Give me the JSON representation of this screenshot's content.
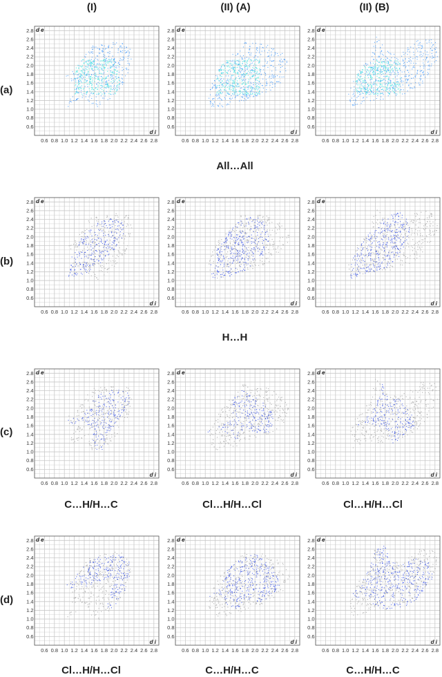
{
  "columns": [
    "(I)",
    "(II) (A)",
    "(II) (B)"
  ],
  "rows": [
    {
      "label": "(a)",
      "captions": [
        "All…All",
        "",
        ""
      ]
    },
    {
      "label": "(b)",
      "captions": [
        "H…H",
        "",
        ""
      ]
    },
    {
      "label": "(c)",
      "captions": [
        "C…H/H…C",
        "Cl…H/H…Cl",
        "Cl…H/H…Cl"
      ]
    },
    {
      "label": "(d)",
      "captions": [
        "Cl…H/H…Cl",
        "C…H/H…C",
        "C…H/H…C"
      ]
    }
  ],
  "chart_data": {
    "type": "scatter",
    "xlabel": "d i",
    "ylabel": "d e",
    "xlim": [
      0.4,
      2.9
    ],
    "ylim": [
      0.4,
      2.9
    ],
    "grid": true,
    "xticks": [
      "0.6",
      "0.8",
      "1.0",
      "1.2",
      "1.4",
      "1.6",
      "1.8",
      "2.0",
      "2.2",
      "2.4",
      "2.6",
      "2.8"
    ],
    "yticks": [
      "0.6",
      "0.8",
      "1.0",
      "1.2",
      "1.4",
      "1.6",
      "1.8",
      "2.0",
      "2.2",
      "2.4",
      "2.6",
      "2.8"
    ],
    "colors": {
      "full": "#2a8cff",
      "contact": "#1f3ee6",
      "background": "#b8b8b8",
      "grid": "#c8c8c8",
      "axis": "#555555"
    },
    "panels": [
      {
        "row": "(a)",
        "col": "(I)",
        "mode": "full",
        "shape": [
          [
            1.05,
            1.05
          ],
          [
            1.2,
            1.55
          ],
          [
            1.0,
            1.75
          ],
          [
            1.25,
            2.0
          ],
          [
            1.5,
            2.45
          ],
          [
            2.0,
            2.55
          ],
          [
            2.3,
            2.5
          ],
          [
            2.35,
            2.2
          ],
          [
            2.3,
            1.9
          ],
          [
            2.2,
            1.6
          ],
          [
            2.05,
            1.4
          ],
          [
            1.85,
            1.15
          ],
          [
            1.7,
            1.0
          ],
          [
            1.55,
            1.05
          ],
          [
            1.4,
            1.3
          ]
        ]
      },
      {
        "row": "(a)",
        "col": "(II) (A)",
        "mode": "full",
        "shape": [
          [
            1.1,
            1.05
          ],
          [
            1.05,
            1.3
          ],
          [
            1.1,
            1.6
          ],
          [
            1.3,
            2.0
          ],
          [
            1.55,
            2.3
          ],
          [
            1.75,
            2.55
          ],
          [
            2.2,
            2.5
          ],
          [
            2.55,
            2.3
          ],
          [
            2.7,
            2.0
          ],
          [
            2.6,
            1.7
          ],
          [
            2.35,
            1.45
          ],
          [
            2.0,
            1.3
          ],
          [
            1.65,
            1.15
          ],
          [
            1.3,
            1.05
          ]
        ]
      },
      {
        "row": "(a)",
        "col": "(II) (B)",
        "mode": "full",
        "shape": [
          [
            1.1,
            1.05
          ],
          [
            1.05,
            1.35
          ],
          [
            1.2,
            1.8
          ],
          [
            1.5,
            2.2
          ],
          [
            1.6,
            2.7
          ],
          [
            1.85,
            2.35
          ],
          [
            2.1,
            2.3
          ],
          [
            2.45,
            2.6
          ],
          [
            2.8,
            2.6
          ],
          [
            2.85,
            2.2
          ],
          [
            2.6,
            1.65
          ],
          [
            2.3,
            1.4
          ],
          [
            1.9,
            1.25
          ],
          [
            1.4,
            1.15
          ]
        ]
      },
      {
        "row": "(b)",
        "col": "(I)",
        "mode": "contact",
        "shape": [
          [
            1.05,
            1.08
          ],
          [
            1.1,
            1.4
          ],
          [
            1.2,
            1.75
          ],
          [
            1.4,
            2.1
          ],
          [
            1.7,
            2.35
          ],
          [
            2.0,
            2.45
          ],
          [
            2.2,
            2.35
          ],
          [
            2.2,
            2.0
          ],
          [
            2.0,
            1.7
          ],
          [
            1.75,
            1.4
          ],
          [
            1.5,
            1.2
          ],
          [
            1.25,
            1.1
          ]
        ]
      },
      {
        "row": "(b)",
        "col": "(II) (A)",
        "mode": "contact",
        "shape": [
          [
            1.1,
            1.05
          ],
          [
            1.1,
            1.4
          ],
          [
            1.25,
            1.75
          ],
          [
            1.45,
            2.1
          ],
          [
            1.75,
            2.45
          ],
          [
            2.0,
            2.55
          ],
          [
            2.2,
            2.3
          ],
          [
            2.3,
            1.95
          ],
          [
            2.2,
            1.6
          ],
          [
            1.95,
            1.3
          ],
          [
            1.6,
            1.15
          ],
          [
            1.3,
            1.05
          ]
        ]
      },
      {
        "row": "(b)",
        "col": "(II) (B)",
        "mode": "contact",
        "shape": [
          [
            1.1,
            1.05
          ],
          [
            1.1,
            1.4
          ],
          [
            1.25,
            1.8
          ],
          [
            1.5,
            2.15
          ],
          [
            1.8,
            2.5
          ],
          [
            2.1,
            2.6
          ],
          [
            2.3,
            2.3
          ],
          [
            2.25,
            1.9
          ],
          [
            2.1,
            1.55
          ],
          [
            1.8,
            1.3
          ],
          [
            1.45,
            1.15
          ]
        ]
      },
      {
        "row": "(c)",
        "col": "(I)",
        "mode": "contact",
        "shape": [
          [
            1.0,
            1.7
          ],
          [
            1.2,
            1.6
          ],
          [
            1.4,
            1.9
          ],
          [
            1.6,
            2.25
          ],
          [
            1.9,
            2.45
          ],
          [
            2.3,
            2.4
          ],
          [
            2.3,
            2.1
          ],
          [
            2.05,
            1.7
          ],
          [
            1.85,
            1.35
          ],
          [
            1.75,
            1.05
          ],
          [
            1.6,
            1.05
          ],
          [
            1.55,
            1.45
          ],
          [
            1.35,
            1.75
          ],
          [
            1.15,
            1.8
          ]
        ]
      },
      {
        "row": "(c)",
        "col": "(II) (A)",
        "mode": "contact",
        "shape": [
          [
            1.0,
            1.45
          ],
          [
            1.3,
            1.6
          ],
          [
            1.55,
            1.75
          ],
          [
            1.55,
            2.2
          ],
          [
            1.7,
            2.45
          ],
          [
            1.85,
            2.35
          ],
          [
            2.1,
            2.2
          ],
          [
            2.35,
            1.9
          ],
          [
            2.4,
            1.55
          ],
          [
            2.2,
            1.4
          ],
          [
            1.95,
            1.45
          ],
          [
            1.8,
            1.6
          ],
          [
            1.6,
            1.2
          ],
          [
            1.55,
            1.35
          ],
          [
            1.3,
            1.5
          ]
        ]
      },
      {
        "row": "(c)",
        "col": "(II) (B)",
        "mode": "contact",
        "shape": [
          [
            1.05,
            1.55
          ],
          [
            1.35,
            1.7
          ],
          [
            1.55,
            1.95
          ],
          [
            1.7,
            2.4
          ],
          [
            1.75,
            2.65
          ],
          [
            1.8,
            2.3
          ],
          [
            2.1,
            2.2
          ],
          [
            2.3,
            1.95
          ],
          [
            2.4,
            1.6
          ],
          [
            2.15,
            1.35
          ],
          [
            1.95,
            1.2
          ],
          [
            1.8,
            1.55
          ],
          [
            1.5,
            1.65
          ],
          [
            1.25,
            1.6
          ]
        ]
      },
      {
        "row": "(d)",
        "col": "(I)",
        "mode": "contact",
        "shape": [
          [
            1.0,
            1.75
          ],
          [
            1.2,
            1.95
          ],
          [
            1.4,
            2.3
          ],
          [
            1.7,
            2.45
          ],
          [
            2.1,
            2.5
          ],
          [
            2.35,
            2.3
          ],
          [
            2.3,
            1.95
          ],
          [
            2.2,
            1.6
          ],
          [
            2.05,
            1.3
          ],
          [
            1.9,
            1.15
          ],
          [
            1.85,
            1.4
          ],
          [
            1.95,
            1.75
          ],
          [
            2.0,
            2.05
          ],
          [
            1.75,
            1.85
          ],
          [
            1.4,
            1.75
          ],
          [
            1.2,
            1.7
          ]
        ]
      },
      {
        "row": "(d)",
        "col": "(II) (A)",
        "mode": "contact",
        "shape": [
          [
            1.05,
            1.5
          ],
          [
            1.3,
            1.75
          ],
          [
            1.4,
            2.1
          ],
          [
            1.65,
            2.35
          ],
          [
            1.95,
            2.5
          ],
          [
            2.2,
            2.4
          ],
          [
            2.4,
            2.15
          ],
          [
            2.5,
            1.8
          ],
          [
            2.35,
            1.5
          ],
          [
            2.1,
            1.4
          ],
          [
            1.8,
            1.45
          ],
          [
            1.6,
            1.2
          ],
          [
            1.5,
            1.3
          ],
          [
            1.25,
            1.45
          ]
        ]
      },
      {
        "row": "(d)",
        "col": "(II) (B)",
        "mode": "contact",
        "shape": [
          [
            1.05,
            1.55
          ],
          [
            1.25,
            1.75
          ],
          [
            1.45,
            2.1
          ],
          [
            1.6,
            2.6
          ],
          [
            1.75,
            2.75
          ],
          [
            1.9,
            2.4
          ],
          [
            2.1,
            2.25
          ],
          [
            2.4,
            2.4
          ],
          [
            2.7,
            2.3
          ],
          [
            2.75,
            1.95
          ],
          [
            2.5,
            1.5
          ],
          [
            2.2,
            1.3
          ],
          [
            1.85,
            1.2
          ],
          [
            1.6,
            1.3
          ],
          [
            1.35,
            1.45
          ]
        ]
      }
    ]
  }
}
